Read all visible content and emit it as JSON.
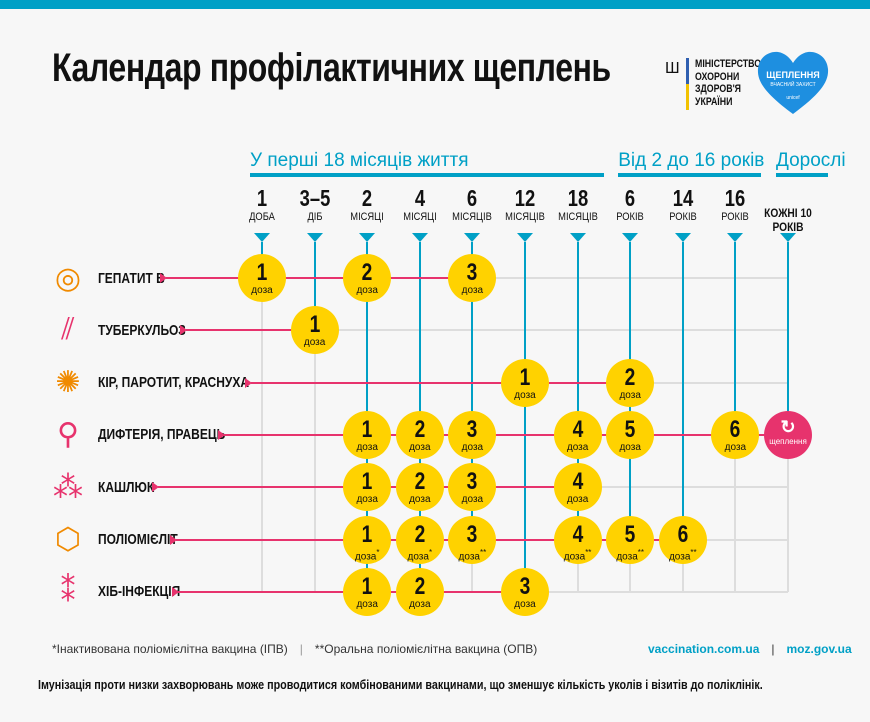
{
  "title": "Календар профілактичних щеплень",
  "ministry": {
    "lines": [
      "МІНІСТЕРСТВО",
      "ОХОРОНИ",
      "ЗДОРОВ'Я",
      "УКРАЇНИ"
    ]
  },
  "campaign_logo": {
    "title": "ЩЕПЛЕННЯ",
    "subtitle": "ВЧАСНИЙ ЗАХИСТ",
    "brand": "unicef",
    "color": "#1e8fe0"
  },
  "groups": [
    {
      "label": "У перші 18 місяців життя",
      "from": 0,
      "to": 6
    },
    {
      "label": "Від 2 до 16 років",
      "from": 7,
      "to": 9
    },
    {
      "label": "Дорослі",
      "from": 10,
      "to": 10
    }
  ],
  "columns": [
    {
      "num": "1",
      "unit": "ДОБА"
    },
    {
      "num": "3–5",
      "unit": "ДІБ"
    },
    {
      "num": "2",
      "unit": "МІСЯЦІ"
    },
    {
      "num": "4",
      "unit": "МІСЯЦІ"
    },
    {
      "num": "6",
      "unit": "МІСЯЦІВ"
    },
    {
      "num": "12",
      "unit": "МІСЯЦІВ"
    },
    {
      "num": "18",
      "unit": "МІСЯЦІВ"
    },
    {
      "num": "6",
      "unit": "РОКІВ"
    },
    {
      "num": "14",
      "unit": "РОКІВ"
    },
    {
      "num": "16",
      "unit": "РОКІВ"
    },
    {
      "adult": "КОЖНІ 10 РОКІВ"
    }
  ],
  "dose_label": "доза",
  "adult_label": "щеплення",
  "colors": {
    "accent": "#00a0c6",
    "pink": "#e7336d",
    "dose": "#ffd200"
  },
  "diseases": [
    {
      "name": "ГЕПАТИТ В",
      "icon": "hepatitis-virus-icon",
      "doses": [
        {
          "col": 0,
          "n": "1"
        },
        {
          "col": 2,
          "n": "2"
        },
        {
          "col": 4,
          "n": "3"
        }
      ]
    },
    {
      "name": "ТУБЕРКУЛЬОЗ",
      "icon": "tuberculosis-bacteria-icon",
      "doses": [
        {
          "col": 1,
          "n": "1"
        }
      ]
    },
    {
      "name": "КІР, ПАРОТИТ, КРАСНУХА",
      "icon": "measles-virus-icon",
      "doses": [
        {
          "col": 5,
          "n": "1"
        },
        {
          "col": 7,
          "n": "2"
        }
      ]
    },
    {
      "name": "ДИФТЕРІЯ, ПРАВЕЦЬ",
      "icon": "diphtheria-bacteria-icon",
      "doses": [
        {
          "col": 2,
          "n": "1"
        },
        {
          "col": 3,
          "n": "2"
        },
        {
          "col": 4,
          "n": "3"
        },
        {
          "col": 6,
          "n": "4"
        },
        {
          "col": 7,
          "n": "5"
        },
        {
          "col": 9,
          "n": "6"
        }
      ],
      "adult": true
    },
    {
      "name": "КАШЛЮК",
      "icon": "pertussis-bacteria-icon",
      "doses": [
        {
          "col": 2,
          "n": "1"
        },
        {
          "col": 3,
          "n": "2"
        },
        {
          "col": 4,
          "n": "3"
        },
        {
          "col": 6,
          "n": "4"
        }
      ]
    },
    {
      "name": "ПОЛІОМІЄЛІТ",
      "icon": "polio-virus-icon",
      "doses": [
        {
          "col": 2,
          "n": "1",
          "mark": "*"
        },
        {
          "col": 3,
          "n": "2",
          "mark": "*"
        },
        {
          "col": 4,
          "n": "3",
          "mark": "**"
        },
        {
          "col": 6,
          "n": "4",
          "mark": "**"
        },
        {
          "col": 7,
          "n": "5",
          "mark": "**"
        },
        {
          "col": 8,
          "n": "6",
          "mark": "**"
        }
      ]
    },
    {
      "name": "ХІБ-ІНФЕКЦІЯ",
      "icon": "hib-bacteria-icon",
      "doses": [
        {
          "col": 2,
          "n": "1"
        },
        {
          "col": 3,
          "n": "2"
        },
        {
          "col": 5,
          "n": "3"
        }
      ]
    }
  ],
  "footnotes": {
    "ipv": "*Інактивована поліомієлітна вакцина (ІПВ)",
    "opv": "**Оральна поліомієлітна вакцина (ОПВ)",
    "separator": "|"
  },
  "links": [
    "vaccination.com.ua",
    "moz.gov.ua"
  ],
  "note": "Імунізація проти низки захворювань може проводитися комбінованими вакцинами, що зменшує кількість уколів і візитів до поліклінік."
}
